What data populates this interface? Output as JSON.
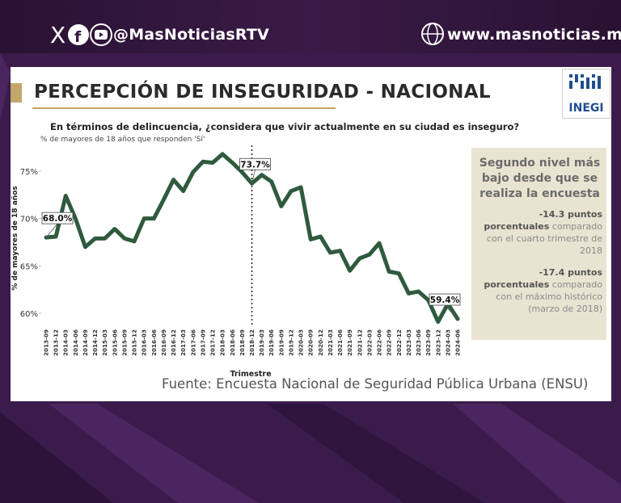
{
  "header": {
    "social_handle": "@MasNoticiasRTV",
    "website": "www.masnoticias.mx"
  },
  "slide": {
    "title": "PERCEPCIÓN DE INSEGURIDAD - NACIONAL",
    "logo": "INEGI",
    "source": "Fuente: Encuesta Nacional de Seguridad Pública Urbana (ENSU)",
    "side_box": {
      "headline": "Segundo nivel más bajo desde que se realiza la encuesta",
      "notes": [
        {
          "bold": "-14.3 puntos porcentuales",
          "text": "comparado con el cuarto trimestre de 2018"
        },
        {
          "bold": "-17.4 puntos porcentuales",
          "text": "comparado con el máximo histórico (marzo de 2018)"
        }
      ]
    }
  },
  "chart_data": {
    "type": "line",
    "title": "En términos de delincuencia, ¿considera que vivir actualmente en su ciudad es inseguro?",
    "subtitle": "% de mayores de 18 años que responden 'Sí'",
    "x_label": "Trimestre",
    "y_label": "% de mayores de 18 años",
    "categories": [
      "2013-09",
      "2013-12",
      "2014-03",
      "2014-06",
      "2014-09",
      "2014-12",
      "2015-03",
      "2015-06",
      "2015-09",
      "2015-12",
      "2016-03",
      "2016-06",
      "2016-09",
      "2016-12",
      "2017-03",
      "2017-06",
      "2017-09",
      "2017-12",
      "2018-03",
      "2018-06",
      "2018-09",
      "2018-12",
      "2019-03",
      "2019-06",
      "2019-09",
      "2019-12",
      "2020-03",
      "2020-09",
      "2020-12",
      "2021-03",
      "2021-06",
      "2021-09",
      "2021-12",
      "2022-03",
      "2022-06",
      "2022-09",
      "2022-12",
      "2023-03",
      "2023-06",
      "2023-09",
      "2023-12",
      "2024-03",
      "2024-06"
    ],
    "series": [
      {
        "name": "Percepción de inseguridad",
        "color": "#2f5a3e",
        "values": [
          68.0,
          68.1,
          72.4,
          70.0,
          67.0,
          67.9,
          67.9,
          68.9,
          67.9,
          67.6,
          70.0,
          70.0,
          72.0,
          74.1,
          72.9,
          74.9,
          76.0,
          75.9,
          76.8,
          75.9,
          74.9,
          73.7,
          74.6,
          73.9,
          71.3,
          72.9,
          73.3,
          67.8,
          68.1,
          66.4,
          66.6,
          64.5,
          65.8,
          66.2,
          67.4,
          64.4,
          64.2,
          62.1,
          62.3,
          61.4,
          59.1,
          61.0,
          59.4
        ],
        "value_labels": [
          "68.0%",
          null,
          null,
          null,
          null,
          null,
          null,
          null,
          null,
          null,
          null,
          null,
          null,
          null,
          null,
          null,
          null,
          null,
          null,
          null,
          null,
          "73.7%",
          null,
          null,
          null,
          null,
          null,
          null,
          null,
          null,
          null,
          null,
          null,
          null,
          null,
          null,
          null,
          null,
          null,
          null,
          null,
          null,
          "59.4%"
        ]
      }
    ],
    "ylim": [
      58.5,
      77.5
    ],
    "yticks": [
      {
        "value": 60,
        "label": "60%"
      },
      {
        "value": 65,
        "label": "65%"
      },
      {
        "value": 70,
        "label": "70%"
      },
      {
        "value": 75,
        "label": "75%"
      }
    ],
    "reference_line": "2018-12",
    "grid": false
  }
}
